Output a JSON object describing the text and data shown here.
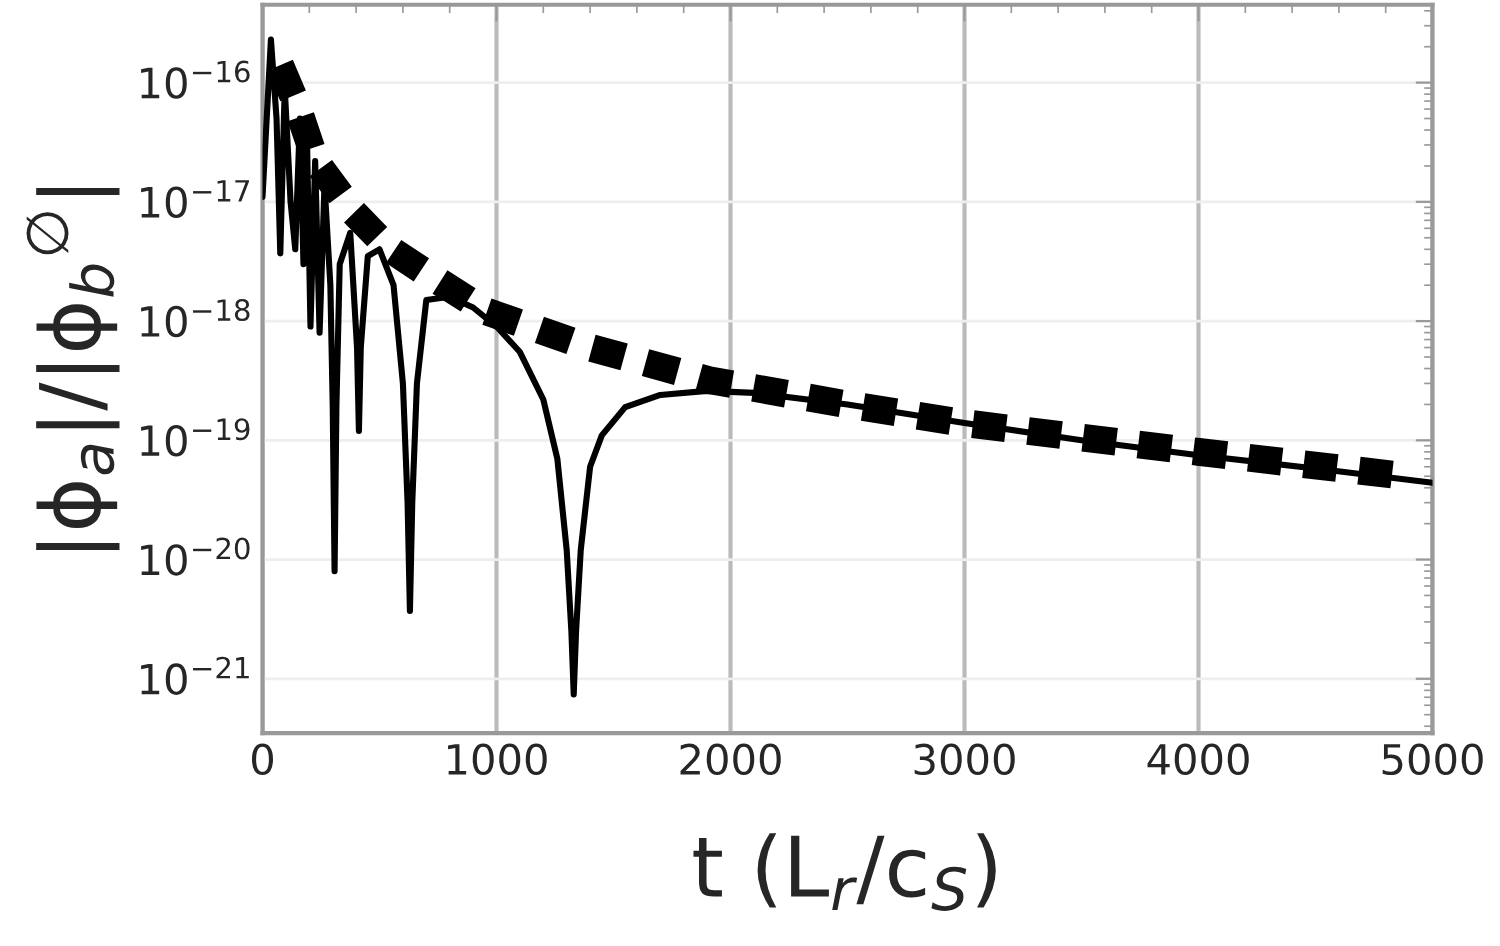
{
  "chart_data": {
    "type": "line",
    "xlabel": "t (L$_{r}$/c$_{S}$)",
    "ylabel": "|ϕ$_{a}$|/|ϕ$_{b}$$^{∅}$|",
    "log": "y",
    "grid": true,
    "legend": false,
    "marker": "none",
    "xlim": [
      0,
      5000
    ],
    "xticks": [
      0,
      1000,
      2000,
      3000,
      4000,
      5000
    ],
    "ylim": [
      3.5e-22,
      4.5e-16
    ],
    "yticks": [
      {
        "value": 1e-21,
        "label": "10$^{−21}$"
      },
      {
        "value": 1e-20,
        "label": "10$^{−20}$"
      },
      {
        "value": 1e-19,
        "label": "10$^{−19}$"
      },
      {
        "value": 1e-18,
        "label": "10$^{−18}$"
      },
      {
        "value": 1e-17,
        "label": "10$^{−17}$"
      },
      {
        "value": 1e-16,
        "label": "10$^{−16}$"
      }
    ],
    "series": [
      {
        "color": "#000000",
        "line_style": "solid",
        "x": [
          0,
          36,
          60,
          76,
          95,
          120,
          140,
          160,
          175,
          190,
          205,
          225,
          244,
          265,
          290,
          300,
          308,
          316,
          330,
          375,
          404,
          412,
          420,
          450,
          500,
          560,
          600,
          620,
          630,
          640,
          660,
          700,
          800,
          900,
          1000,
          1100,
          1200,
          1260,
          1300,
          1320,
          1330,
          1340,
          1360,
          1400,
          1450,
          1550,
          1700,
          1900,
          2100,
          2500,
          3000,
          3500,
          4000,
          4500,
          5000
        ],
        "values": [
          1.1e-17,
          2.3e-16,
          5e-17,
          3.7e-18,
          9e-17,
          1e-17,
          4e-18,
          5e-17,
          3e-18,
          3.5e-17,
          9e-19,
          2.2e-17,
          8e-19,
          1.4e-17,
          2e-18,
          2e-19,
          8e-21,
          2e-19,
          3e-18,
          5.5e-18,
          6e-19,
          1.2e-19,
          6e-19,
          3.5e-18,
          4e-18,
          2e-18,
          3e-19,
          3e-20,
          3.7e-21,
          3e-20,
          3e-19,
          1.5e-18,
          1.6e-18,
          1.3e-18,
          9e-19,
          5.5e-19,
          2.2e-19,
          7e-20,
          1.2e-20,
          2.5e-21,
          7.4e-22,
          2.5e-21,
          1.2e-20,
          6e-20,
          1.1e-19,
          1.9e-19,
          2.4e-19,
          2.6e-19,
          2.5e-19,
          2e-19,
          1.4e-19,
          1e-19,
          7.5e-20,
          5.8e-20,
          4.4e-20
        ]
      },
      {
        "color": "#000000",
        "line_style": "dashed",
        "x": [
          75,
          143,
          227,
          386,
          538,
          731,
          958,
          1400,
          1908,
          2500,
          2992,
          4000,
          4890
        ],
        "values": [
          1.4e-16,
          6.8e-17,
          2.2e-17,
          8.3e-18,
          4.1e-18,
          2.3e-18,
          1.2e-18,
          6e-19,
          3.2e-19,
          2e-19,
          1.4e-19,
          8e-20,
          5e-20
        ]
      }
    ]
  }
}
